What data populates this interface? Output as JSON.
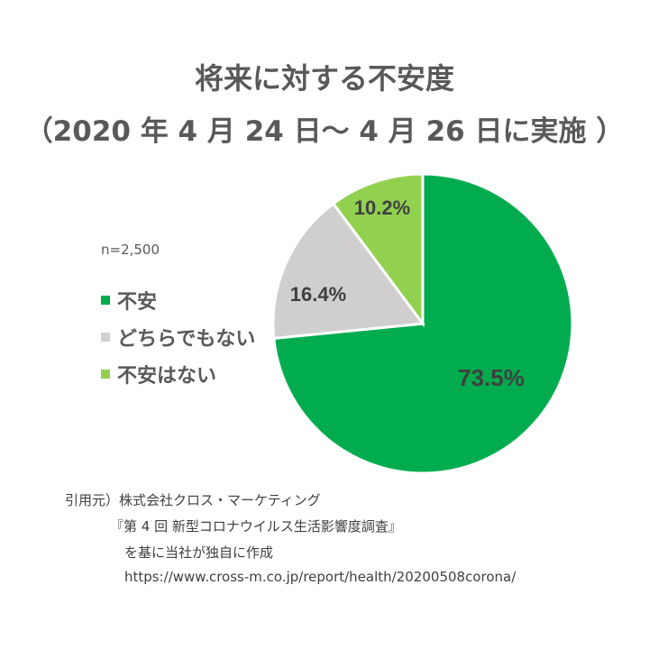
{
  "title": {
    "line1": "将来に対する不安度",
    "line2": "（2020 年 4 月 24 日～ 4 月 26 日に実施 ）"
  },
  "sample_size": "n=2,500",
  "legend": [
    {
      "label": "不安",
      "color": "#00AC4E"
    },
    {
      "label": "どちらでもない",
      "color": "#D0CECE"
    },
    {
      "label": "不安はない",
      "color": "#92D050"
    }
  ],
  "labels": {
    "s0": "73.5%",
    "s1": "16.4%",
    "s2": "10.2%"
  },
  "source": {
    "line1": "引用元）株式会社クロス・マーケティング",
    "line2": "『第 4 回 新型コロナウイルス生活影響度調査』",
    "line3": "を基に当社が独自に作成",
    "line4": "https://www.cross-m.co.jp/report/health/20200508corona/"
  },
  "chart_data": {
    "type": "pie",
    "title": "将来に対する不安度（2020年4月24日～4月26日に実施）",
    "subtitle": "n=2,500",
    "categories": [
      "不安",
      "どちらでもない",
      "不安はない"
    ],
    "values": [
      73.5,
      16.4,
      10.2
    ],
    "colors": [
      "#00AC4E",
      "#D0CECE",
      "#92D050"
    ],
    "data_labels": [
      "73.5%",
      "16.4%",
      "10.2%"
    ],
    "start_angle": "12 o'clock, clockwise",
    "legend_position": "left"
  }
}
